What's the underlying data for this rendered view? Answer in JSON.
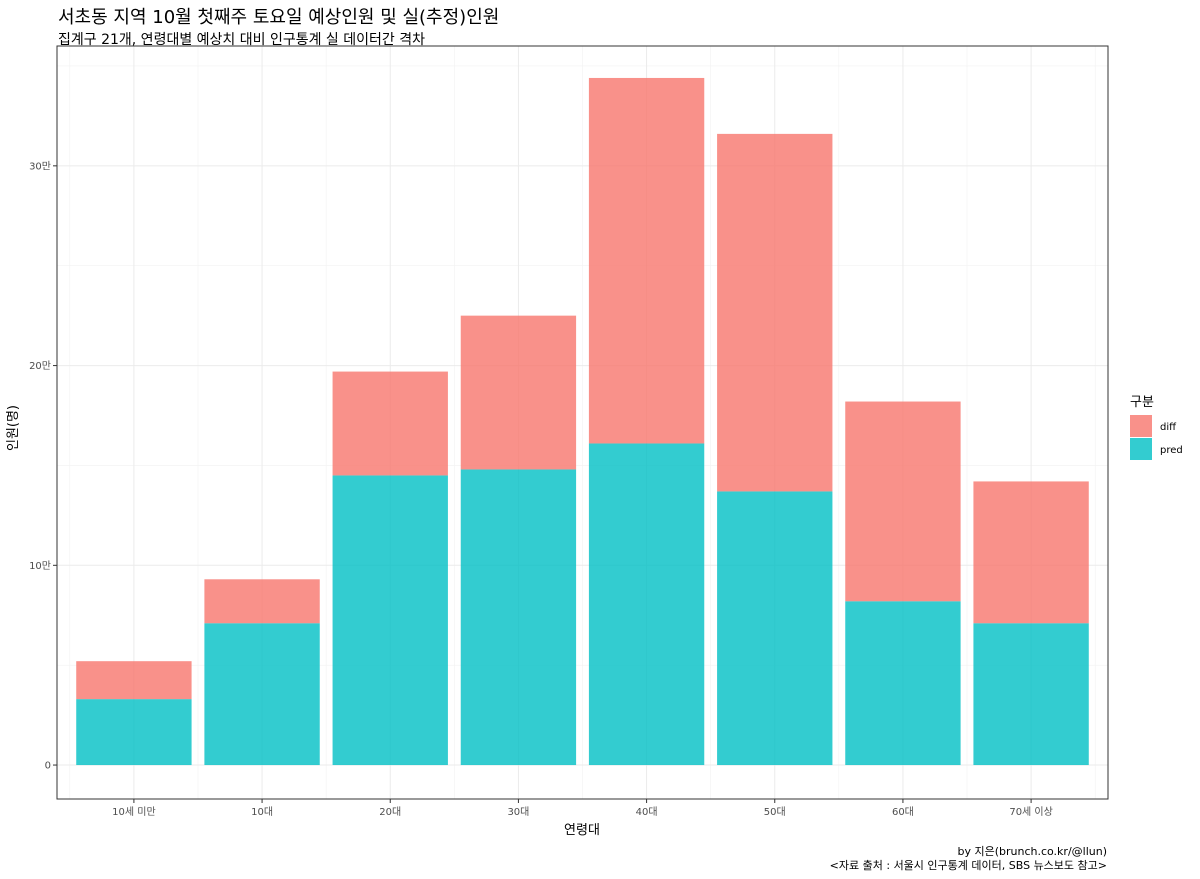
{
  "chart_data": {
    "type": "bar",
    "stacked": true,
    "title": "서초동 지역 10월 첫째주 토요일 예상인원 및 실(추정)인원",
    "subtitle": "집계구 21개, 연령대별 예상치 대비 인구통계 실 데이터간 격차",
    "xlabel": "연령대",
    "ylabel": "인원(명)",
    "categories": [
      "10세 미만",
      "10대",
      "20대",
      "30대",
      "40대",
      "50대",
      "60대",
      "70세 이상"
    ],
    "ylim": [
      -17000,
      360000
    ],
    "yticks": [
      0,
      100000,
      200000,
      300000
    ],
    "ytick_labels": [
      "0",
      "10만",
      "20만",
      "30만"
    ],
    "grid": true,
    "legend_title": "구분",
    "legend_position": "right",
    "series": [
      {
        "name": "pred",
        "color": "#00BFC4",
        "values": [
          33000,
          71000,
          145000,
          148000,
          161000,
          137000,
          82000,
          71000
        ]
      },
      {
        "name": "diff",
        "color": "#F8766D",
        "values": [
          19000,
          22000,
          52000,
          77000,
          183000,
          179000,
          100000,
          71000
        ]
      }
    ],
    "legend_order": [
      "diff",
      "pred"
    ]
  },
  "caption": {
    "line1": "by 지은(brunch.co.kr/@llun)",
    "line2": "<자료 출처 : 서울시 인구통계 데이터, SBS 뉴스보도 참고>"
  }
}
